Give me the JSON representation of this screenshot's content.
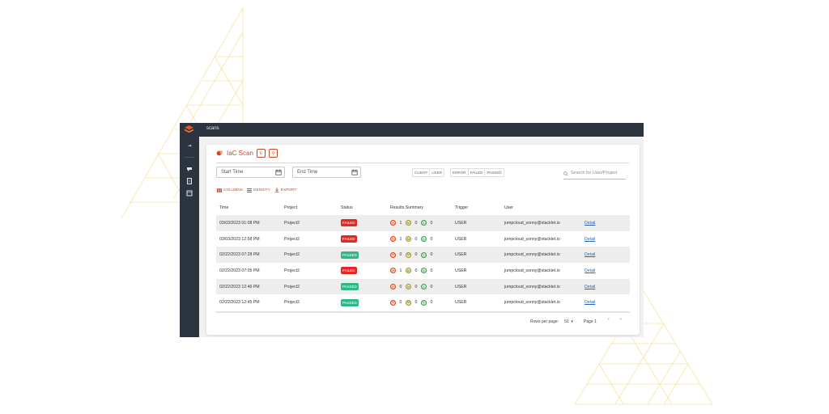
{
  "app": {
    "top_title": "scans",
    "page_title": "IaC Scan"
  },
  "filters": {
    "start_placeholder": "Start Time",
    "end_placeholder": "End Time",
    "trigger_options": [
      "CLIENT",
      "USER"
    ],
    "status_options": [
      "ERROR",
      "FAILED",
      "PASSED"
    ],
    "search_placeholder": "Search for User/Project"
  },
  "toolbar": {
    "columns": "COLUMNS",
    "density": "DENSITY",
    "export": "EXPORT"
  },
  "table": {
    "headers": [
      "Time",
      "Project",
      "Status",
      "Results Summary",
      "Trigger",
      "User"
    ],
    "rows": [
      {
        "time": "03/03/2023 01:08 PM",
        "project": "Project2",
        "status": "FAILED",
        "h": "1",
        "m": "0",
        "l": "0",
        "trigger": "USER",
        "user": "jumpcloud_sonny@stacklet.io",
        "link": "Detail"
      },
      {
        "time": "03/03/2023 12:58 PM",
        "project": "Project2",
        "status": "FAILED",
        "h": "1",
        "m": "0",
        "l": "0",
        "trigger": "USER",
        "user": "jumpcloud_sonny@stacklet.io",
        "link": "Detail"
      },
      {
        "time": "02/22/2023 07:28 PM",
        "project": "Project2",
        "status": "PASSED",
        "h": "0",
        "m": "0",
        "l": "0",
        "trigger": "USER",
        "user": "jumpcloud_sonny@stacklet.io",
        "link": "Detail"
      },
      {
        "time": "02/22/2023 07:05 PM",
        "project": "Project2",
        "status": "FAILED",
        "h": "1",
        "m": "0",
        "l": "0",
        "trigger": "USER",
        "user": "jumpcloud_sonny@stacklet.io",
        "link": "Detail"
      },
      {
        "time": "02/22/2023 12:46 PM",
        "project": "Project2",
        "status": "PASSED",
        "h": "0",
        "m": "0",
        "l": "0",
        "trigger": "USER",
        "user": "jumpcloud_sonny@stacklet.io",
        "link": "Detail"
      },
      {
        "time": "02/22/2023 12:45 PM",
        "project": "Project2",
        "status": "PASSED",
        "h": "0",
        "m": "0",
        "l": "0",
        "trigger": "USER",
        "user": "jumpcloud_sonny@stacklet.io",
        "link": "Detail"
      }
    ]
  },
  "severity_letters": {
    "high": "H",
    "medium": "M",
    "low": "L"
  },
  "pagination": {
    "rows_label": "Rows per page:",
    "rows_value": "50",
    "page_label": "Page 1"
  },
  "colors": {
    "accent": "#d0451b",
    "failed": "#e32626",
    "passed": "#2eb88a",
    "sidebar": "#2c3440"
  }
}
